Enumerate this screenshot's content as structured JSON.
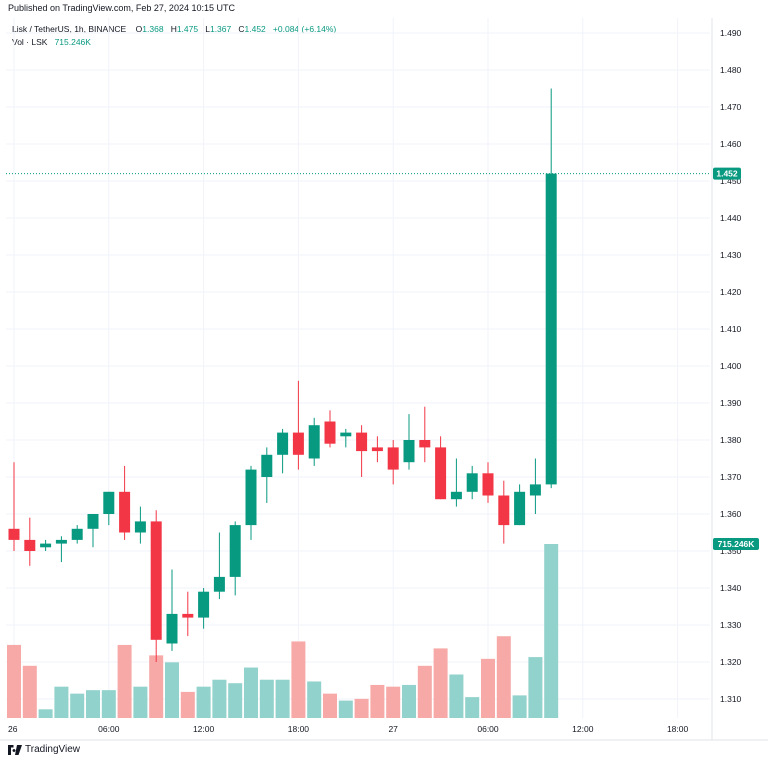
{
  "header": {
    "published": "Published on TradingView.com, Feb 27, 2024 10:15 UTC",
    "symbol": "Lisk / TetherUS, 1h, BINANCE",
    "open_label": "O",
    "open": "1.368",
    "high_label": "H",
    "high": "1.475",
    "low_label": "L",
    "low": "1.367",
    "close_label": "C",
    "close": "1.452",
    "change": "+0.084 (+6.14%)",
    "vol_label": "Vol · LSK",
    "vol_value": "715.246K"
  },
  "footer": {
    "brand": "TradingView"
  },
  "colors": {
    "up": "#089981",
    "down": "#f23645",
    "vol_up": "#92d2cc",
    "vol_down": "#f7a9a7",
    "grid": "#f0f3fa"
  },
  "chart_data": {
    "type": "candlestick",
    "y_axis": {
      "min": 1.31,
      "max": 1.49,
      "ticks": [
        "1.490",
        "1.480",
        "1.470",
        "1.460",
        "1.450",
        "1.440",
        "1.430",
        "1.420",
        "1.410",
        "1.400",
        "1.390",
        "1.380",
        "1.370",
        "1.360",
        "1.350",
        "1.340",
        "1.330",
        "1.320",
        "1.310"
      ]
    },
    "x_ticks": [
      {
        "index": 0,
        "label": "26"
      },
      {
        "index": 6,
        "label": "06:00"
      },
      {
        "index": 12,
        "label": "12:00"
      },
      {
        "index": 18,
        "label": "18:00"
      },
      {
        "index": 24,
        "label": "27"
      },
      {
        "index": 30,
        "label": "06:00"
      },
      {
        "index": 36,
        "label": "12:00"
      },
      {
        "index": 42,
        "label": "18:00"
      }
    ],
    "last_price": "1.452",
    "last_volume": "715.246K",
    "candles": [
      {
        "o": 1.356,
        "h": 1.374,
        "l": 1.35,
        "c": 1.353
      },
      {
        "o": 1.353,
        "h": 1.359,
        "l": 1.346,
        "c": 1.35
      },
      {
        "o": 1.351,
        "h": 1.353,
        "l": 1.35,
        "c": 1.352
      },
      {
        "o": 1.352,
        "h": 1.354,
        "l": 1.347,
        "c": 1.353
      },
      {
        "o": 1.353,
        "h": 1.357,
        "l": 1.352,
        "c": 1.356
      },
      {
        "o": 1.356,
        "h": 1.36,
        "l": 1.351,
        "c": 1.36
      },
      {
        "o": 1.36,
        "h": 1.366,
        "l": 1.357,
        "c": 1.366
      },
      {
        "o": 1.366,
        "h": 1.373,
        "l": 1.353,
        "c": 1.355
      },
      {
        "o": 1.355,
        "h": 1.362,
        "l": 1.352,
        "c": 1.358
      },
      {
        "o": 1.358,
        "h": 1.361,
        "l": 1.32,
        "c": 1.326
      },
      {
        "o": 1.325,
        "h": 1.345,
        "l": 1.323,
        "c": 1.333
      },
      {
        "o": 1.333,
        "h": 1.339,
        "l": 1.327,
        "c": 1.332
      },
      {
        "o": 1.332,
        "h": 1.34,
        "l": 1.329,
        "c": 1.339
      },
      {
        "o": 1.339,
        "h": 1.355,
        "l": 1.337,
        "c": 1.343
      },
      {
        "o": 1.343,
        "h": 1.358,
        "l": 1.338,
        "c": 1.357
      },
      {
        "o": 1.357,
        "h": 1.373,
        "l": 1.353,
        "c": 1.372
      },
      {
        "o": 1.37,
        "h": 1.378,
        "l": 1.363,
        "c": 1.376
      },
      {
        "o": 1.376,
        "h": 1.383,
        "l": 1.371,
        "c": 1.382
      },
      {
        "o": 1.382,
        "h": 1.396,
        "l": 1.372,
        "c": 1.376
      },
      {
        "o": 1.375,
        "h": 1.386,
        "l": 1.373,
        "c": 1.384
      },
      {
        "o": 1.385,
        "h": 1.388,
        "l": 1.378,
        "c": 1.379
      },
      {
        "o": 1.381,
        "h": 1.383,
        "l": 1.378,
        "c": 1.382
      },
      {
        "o": 1.382,
        "h": 1.384,
        "l": 1.37,
        "c": 1.377
      },
      {
        "o": 1.378,
        "h": 1.381,
        "l": 1.374,
        "c": 1.377
      },
      {
        "o": 1.378,
        "h": 1.38,
        "l": 1.368,
        "c": 1.372
      },
      {
        "o": 1.374,
        "h": 1.387,
        "l": 1.372,
        "c": 1.38
      },
      {
        "o": 1.38,
        "h": 1.389,
        "l": 1.374,
        "c": 1.378
      },
      {
        "o": 1.378,
        "h": 1.381,
        "l": 1.364,
        "c": 1.364
      },
      {
        "o": 1.364,
        "h": 1.375,
        "l": 1.362,
        "c": 1.366
      },
      {
        "o": 1.366,
        "h": 1.373,
        "l": 1.364,
        "c": 1.371
      },
      {
        "o": 1.371,
        "h": 1.374,
        "l": 1.363,
        "c": 1.365
      },
      {
        "o": 1.365,
        "h": 1.369,
        "l": 1.352,
        "c": 1.357
      },
      {
        "o": 1.357,
        "h": 1.368,
        "l": 1.357,
        "c": 1.366
      },
      {
        "o": 1.365,
        "h": 1.375,
        "l": 1.36,
        "c": 1.368
      },
      {
        "o": 1.368,
        "h": 1.475,
        "l": 1.367,
        "c": 1.452
      }
    ],
    "volume_scale_note": "relative",
    "volumes": [
      0.42,
      0.3,
      0.05,
      0.18,
      0.14,
      0.16,
      0.16,
      0.42,
      0.18,
      0.36,
      0.32,
      0.15,
      0.18,
      0.22,
      0.2,
      0.29,
      0.22,
      0.22,
      0.44,
      0.21,
      0.14,
      0.1,
      0.11,
      0.19,
      0.18,
      0.19,
      0.3,
      0.4,
      0.25,
      0.12,
      0.34,
      0.47,
      0.13,
      0.35,
      1.0
    ]
  }
}
